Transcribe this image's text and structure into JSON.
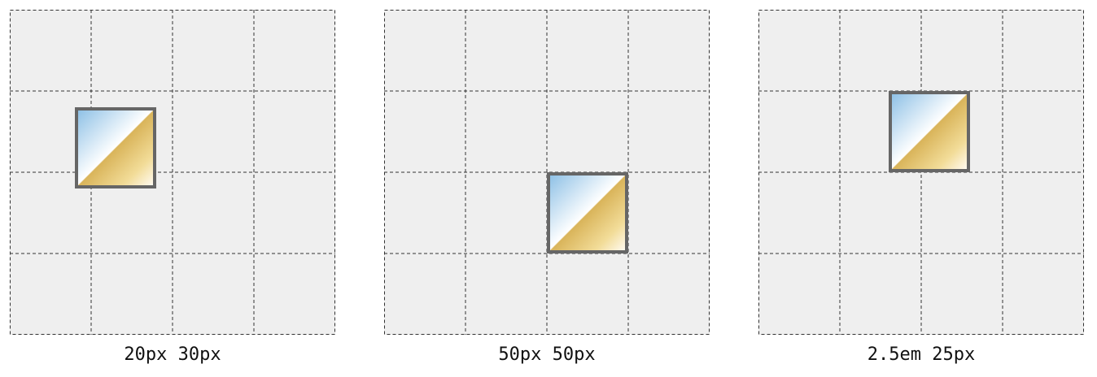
{
  "panels": [
    {
      "caption": "20px 30px"
    },
    {
      "caption": "50px 50px"
    },
    {
      "caption": "2.5em 25px"
    }
  ],
  "colors": {
    "grid_background": "#efefef",
    "grid_lines": "#333333",
    "box_border": "#666666",
    "gradient_blue": "#8fc1e6",
    "gradient_gold": "#d9b45a"
  }
}
